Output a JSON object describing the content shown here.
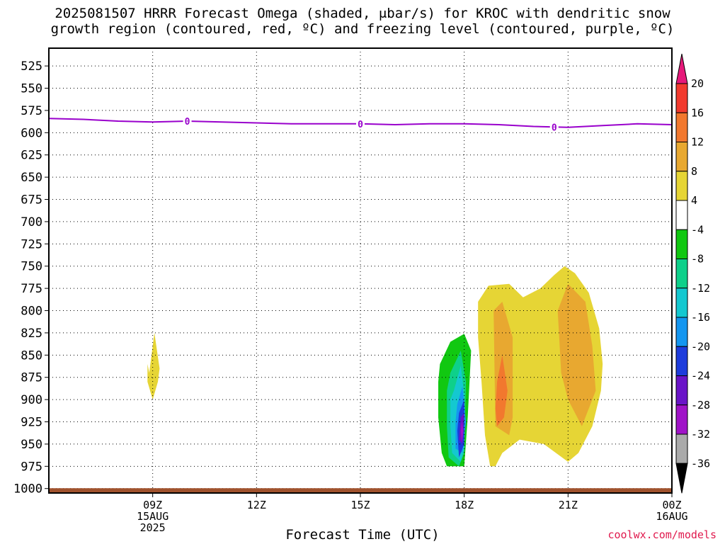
{
  "title": {
    "line1": "2025081507 HRRR Forecast Omega (shaded, μbar/s) for KROC with dendritic snow",
    "line2": "growth region (contoured, red, ºC) and freezing level (contoured, purple, ºC)"
  },
  "credit": "coolwx.com/models",
  "chart_data": {
    "type": "contour",
    "xlabel": "Forecast Time (UTC)",
    "ylabel": "",
    "x_unit": "hours since 2025-08-15 06Z",
    "xlim": [
      0,
      18
    ],
    "ylim": [
      1005,
      505
    ],
    "y_ticks": [
      525,
      550,
      575,
      600,
      625,
      650,
      675,
      700,
      725,
      750,
      775,
      800,
      825,
      850,
      875,
      900,
      925,
      950,
      975,
      1000
    ],
    "x_ticks": [
      {
        "x": 3,
        "lines": [
          "09Z",
          "15AUG",
          "2025"
        ]
      },
      {
        "x": 6,
        "lines": [
          "12Z"
        ]
      },
      {
        "x": 9,
        "lines": [
          "15Z"
        ]
      },
      {
        "x": 12,
        "lines": [
          "18Z"
        ]
      },
      {
        "x": 15,
        "lines": [
          "21Z"
        ]
      },
      {
        "x": 18,
        "lines": [
          "00Z",
          "16AUG"
        ]
      }
    ],
    "grid": true,
    "freezing_level": {
      "label": "0",
      "color": "#9900cc",
      "x": [
        0,
        1,
        2,
        3,
        4,
        5,
        6,
        7,
        8,
        9,
        10,
        11,
        12,
        13,
        14,
        15,
        16,
        17,
        18
      ],
      "y": [
        584,
        585,
        587,
        588,
        587,
        588,
        589,
        590,
        590,
        590,
        591,
        590,
        590,
        591,
        593,
        594,
        592,
        590,
        591
      ],
      "label_x": [
        4,
        9,
        14.6
      ]
    },
    "surface_pressure": 1002,
    "surface_color": "#a0522d",
    "colorbar": {
      "ticks": [
        20,
        16,
        12,
        8,
        4,
        -4,
        -8,
        -12,
        -16,
        -20,
        -24,
        -28,
        -32,
        -36
      ],
      "colors": [
        "#e6197a",
        "#f23a2e",
        "#f2782e",
        "#e8a830",
        "#e6d535",
        "#ffffff",
        "#11c811",
        "#0ed08a",
        "#14c8d0",
        "#1496f0",
        "#1e3cdc",
        "#6a14c8",
        "#a013c8",
        "#aaaaaa",
        "#000000"
      ]
    },
    "omega_regions": [
      {
        "value": 4,
        "color": "#e6d535",
        "x": [
          2.9,
          3.05,
          3.2,
          3.15,
          3.0,
          2.85,
          2.85
        ],
        "y": [
          870,
          825,
          865,
          880,
          900,
          880,
          860
        ]
      },
      {
        "value": -8,
        "color": "#11c811",
        "x": [
          11.3,
          11.6,
          12.0,
          12.2,
          12.1,
          12.0,
          11.5,
          11.35,
          11.25,
          11.25,
          11.3
        ],
        "y": [
          860,
          835,
          826,
          845,
          920,
          975,
          975,
          960,
          920,
          880,
          860
        ]
      },
      {
        "value": -12,
        "color": "#0ed08a",
        "x": [
          11.6,
          11.9,
          12.05,
          12.0,
          11.85,
          11.55,
          11.5,
          11.5,
          11.6
        ],
        "y": [
          870,
          845,
          880,
          960,
          975,
          965,
          930,
          890,
          870
        ]
      },
      {
        "value": -16,
        "color": "#14c8d0",
        "x": [
          11.7,
          11.9,
          12.0,
          12.0,
          11.9,
          11.65,
          11.6,
          11.6,
          11.7
        ],
        "y": [
          890,
          862,
          895,
          955,
          970,
          960,
          930,
          900,
          890
        ]
      },
      {
        "value": -20,
        "color": "#1496f0",
        "x": [
          11.8,
          11.95,
          12.05,
          11.95,
          11.75,
          11.75,
          11.8
        ],
        "y": [
          905,
          885,
          925,
          960,
          955,
          925,
          905
        ]
      },
      {
        "value": -24,
        "color": "#1e3cdc",
        "x": [
          11.85,
          12.0,
          12.0,
          11.85,
          11.8,
          11.85
        ],
        "y": [
          915,
          900,
          950,
          965,
          935,
          915
        ]
      },
      {
        "value": -28,
        "color": "#6a14c8",
        "x": [
          11.9,
          12.0,
          11.95,
          11.85,
          11.9
        ],
        "y": [
          920,
          915,
          950,
          945,
          920
        ]
      },
      {
        "value": -32,
        "color": "#a013c8",
        "x": [
          11.93,
          11.98,
          11.93,
          11.9,
          11.93
        ],
        "y": [
          925,
          935,
          948,
          935,
          925
        ]
      },
      {
        "value": 4,
        "color": "#e6d535",
        "x": [
          12.4,
          12.7,
          13.3,
          13.7,
          14.2,
          14.6,
          14.9,
          15.2,
          15.6,
          15.9,
          16.0,
          15.95,
          15.7,
          15.3,
          15.0,
          14.3,
          13.6,
          13.1,
          12.9,
          12.75,
          12.6,
          12.5,
          12.4,
          12.4
        ],
        "y": [
          790,
          772,
          770,
          785,
          775,
          760,
          750,
          758,
          780,
          820,
          860,
          890,
          930,
          960,
          970,
          950,
          945,
          960,
          975,
          975,
          940,
          880,
          830,
          790
        ]
      },
      {
        "value": 8,
        "color": "#e8a830",
        "x": [
          12.85,
          13.1,
          13.4,
          13.4,
          13.3,
          12.9,
          12.85
        ],
        "y": [
          800,
          790,
          830,
          920,
          940,
          930,
          800
        ]
      },
      {
        "value": 8,
        "color": "#e8a830",
        "x": [
          14.7,
          15.0,
          15.5,
          15.7,
          15.8,
          15.4,
          15.0,
          14.8,
          14.7
        ],
        "y": [
          800,
          770,
          790,
          840,
          890,
          930,
          900,
          870,
          800
        ]
      },
      {
        "value": 12,
        "color": "#f2782e",
        "x": [
          12.95,
          13.1,
          13.25,
          13.15,
          12.95,
          12.9,
          12.95
        ],
        "y": [
          880,
          850,
          890,
          920,
          930,
          910,
          880
        ]
      }
    ]
  }
}
